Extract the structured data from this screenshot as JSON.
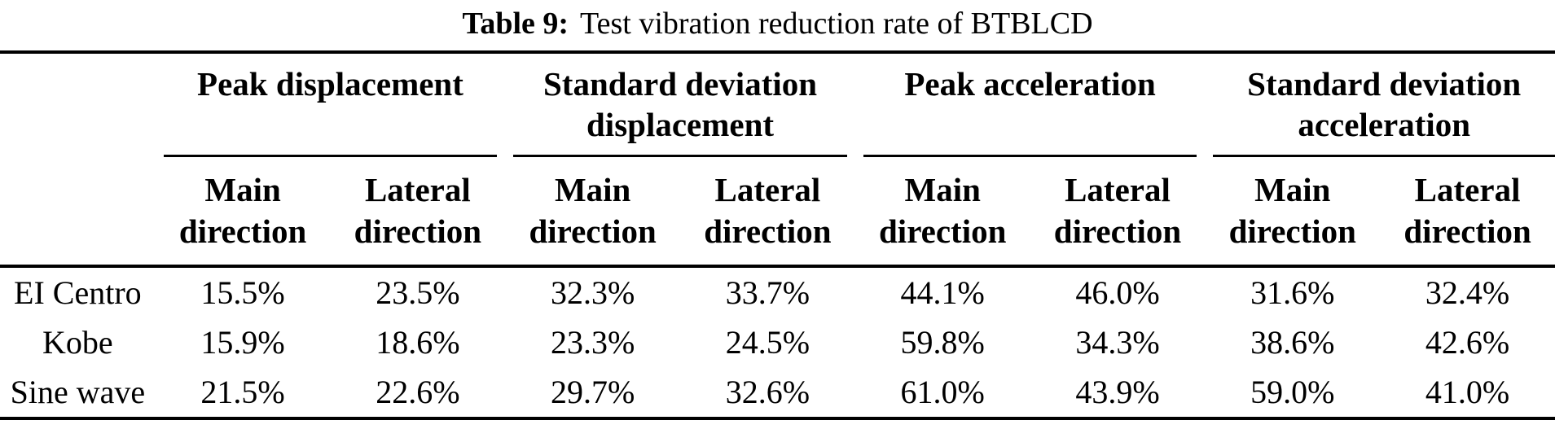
{
  "title": {
    "label": "Table 9:",
    "text": "Test vibration reduction rate of BTBLCD"
  },
  "table": {
    "groups": [
      {
        "label": "Peak displacement"
      },
      {
        "label": "Standard deviation displacement"
      },
      {
        "label": "Peak acceleration"
      },
      {
        "label": "Standard deviation acceleration"
      }
    ],
    "subheaders": [
      "Main direction",
      "Lateral direction",
      "Main direction",
      "Lateral direction",
      "Main direction",
      "Lateral direction",
      "Main direction",
      "Lateral direction"
    ],
    "rows": [
      {
        "label": "EI Centro",
        "values": [
          "15.5%",
          "23.5%",
          "32.3%",
          "33.7%",
          "44.1%",
          "46.0%",
          "31.6%",
          "32.4%"
        ]
      },
      {
        "label": "Kobe",
        "values": [
          "15.9%",
          "18.6%",
          "23.3%",
          "24.5%",
          "59.8%",
          "34.3%",
          "38.6%",
          "42.6%"
        ]
      },
      {
        "label": "Sine wave",
        "values": [
          "21.5%",
          "22.6%",
          "29.7%",
          "32.6%",
          "61.0%",
          "43.9%",
          "59.0%",
          "41.0%"
        ]
      }
    ]
  },
  "colors": {
    "text": "#000000",
    "background": "#ffffff",
    "rule": "#000000"
  }
}
